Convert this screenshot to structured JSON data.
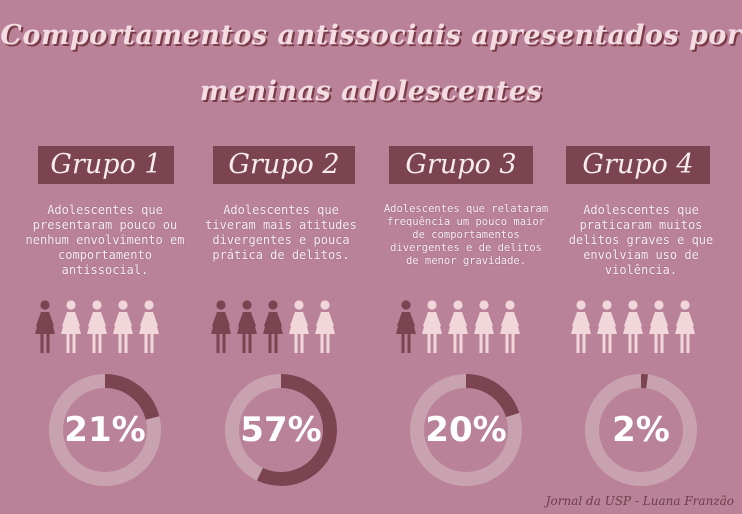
{
  "title_line1": "Comportamentos antissociais apresentados por",
  "title_line2": "meninas adolescentes",
  "groups": [
    {
      "name": "Grupo 1",
      "description": "Adolescentes que presentaram pouco ou nenhum envolvimento em comportamento antissocial.",
      "percent_label": "21%",
      "percent": 21,
      "highlighted_figures": 1
    },
    {
      "name": "Grupo 2",
      "description": "Adolescentes que tiveram mais atitudes divergentes e pouca prática de delitos.",
      "percent_label": "57%",
      "percent": 57,
      "highlighted_figures": 3
    },
    {
      "name": "Grupo 3",
      "description": "Adolescentes que relataram frequência um pouco maior de comportamentos divergentes e de delitos de menor gravidade.",
      "percent_label": "20%",
      "percent": 20,
      "highlighted_figures": 1
    },
    {
      "name": "Grupo 4",
      "description": "Adolescentes que praticaram muitos delitos graves e que envolviam uso de violência.",
      "percent_label": "2%",
      "percent": 2,
      "highlighted_figures": 0
    }
  ],
  "total_figures": 5,
  "credit": "Jornal da USP - Luana Franzão",
  "colors": {
    "background": "#b98299",
    "dark": "#7b4450",
    "light_figure": "#f1d7d9",
    "ring_track": "#c9a2b0"
  }
}
